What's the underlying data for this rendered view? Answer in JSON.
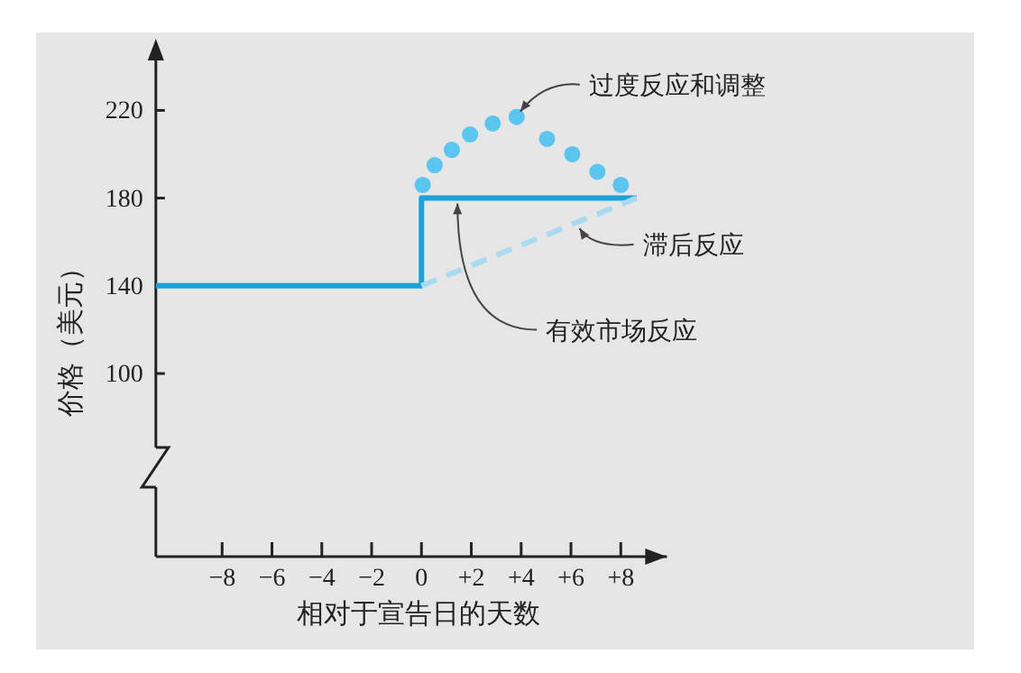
{
  "chart_data": {
    "type": "line",
    "xlabel": "相对于宣告日的天数",
    "ylabel": "价格（美元）",
    "xlim": [
      -10.66,
      9.85
    ],
    "ylim": [
      16.5,
      251
    ],
    "xticks": [
      {
        "value": -8,
        "label": "−8"
      },
      {
        "value": -6,
        "label": "−6"
      },
      {
        "value": -4,
        "label": "−4"
      },
      {
        "value": -2,
        "label": "−2"
      },
      0,
      {
        "value": 2,
        "label": "+2"
      },
      {
        "value": 4,
        "label": "+4"
      },
      {
        "value": 6,
        "label": "+6"
      },
      {
        "value": 8,
        "label": "+8"
      }
    ],
    "yticks": [
      100,
      140,
      180,
      220
    ],
    "grid": false,
    "series": [
      {
        "type": "step",
        "color": "#1aa0db",
        "line_style": "solid",
        "x": [
          -10.66,
          0,
          8.63
        ],
        "values": [
          140,
          180,
          180
        ]
      },
      {
        "color": "#a9daf1",
        "line_style": "dashed",
        "x": [
          0,
          8.63
        ],
        "values": [
          140,
          180
        ]
      },
      {
        "type": "scatter",
        "color": "#5cc5ef",
        "marker": "circle",
        "x": [
          0.05,
          0.53,
          1.22,
          1.95,
          2.86,
          3.82,
          5.04,
          6.05,
          7.06,
          8.0
        ],
        "values": [
          186,
          195,
          202,
          209,
          214,
          217,
          207,
          200,
          192,
          186
        ]
      }
    ],
    "annotations": [
      {
        "text": "过度反应和调整",
        "x": 3.82,
        "y": 217
      },
      {
        "text": "滞后反应",
        "x": 6.2,
        "y": 168.7
      },
      {
        "text": "有效市场反应",
        "x": 1.3,
        "y": 180
      }
    ]
  }
}
